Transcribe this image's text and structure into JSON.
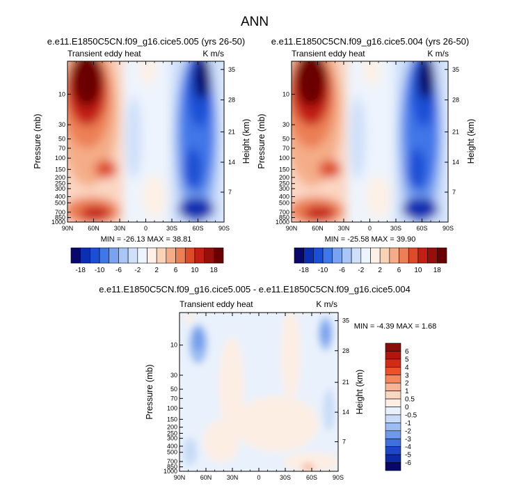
{
  "figure": {
    "title": "ANN"
  },
  "chart_data": [
    {
      "type": "heatmap",
      "title": "e.e11.E1850C5CN.f09_g16.cice5.005 (yrs 26-50)",
      "left_label": "Transient eddy heat",
      "right_label": "K m/s",
      "xlabel": "",
      "ylabel": "Pressure (mb)",
      "y2label": "Height (km)",
      "x_ticks": [
        "90N",
        "60N",
        "30N",
        "0",
        "30S",
        "60S",
        "90S"
      ],
      "y_ticks": [
        "10",
        "30",
        "50",
        "70",
        "100",
        "150",
        "200",
        "250",
        "300",
        "400",
        "500",
        "700",
        "850",
        "1000"
      ],
      "y2_ticks": [
        "35",
        "28",
        "21",
        "14",
        "7"
      ],
      "min_max": "MIN = -26.13  MAX = 38.81"
    },
    {
      "type": "heatmap",
      "title": "e.e11.E1850C5CN.f09_g16.cice5.004 (yrs 26-50)",
      "left_label": "Transient eddy heat",
      "right_label": "K m/s",
      "xlabel": "",
      "ylabel": "Pressure (mb)",
      "y2label": "Height (km)",
      "x_ticks": [
        "90N",
        "60N",
        "30N",
        "0",
        "30S",
        "60S",
        "90S"
      ],
      "y_ticks": [
        "10",
        "30",
        "50",
        "70",
        "100",
        "150",
        "200",
        "250",
        "300",
        "400",
        "500",
        "700",
        "850",
        "1000"
      ],
      "y2_ticks": [
        "35",
        "28",
        "21",
        "14",
        "7"
      ],
      "min_max": "MIN = -25.58  MAX = 39.90"
    },
    {
      "type": "heatmap",
      "title": "e.e11.E1850C5CN.f09_g16.cice5.005 - e.e11.E1850C5CN.f09_g16.cice5.004",
      "left_label": "Transient eddy heat",
      "right_label": "K m/s",
      "xlabel": "",
      "ylabel": "Pressure (mb)",
      "y2label": "Height (km)",
      "x_ticks": [
        "90N",
        "60N",
        "30N",
        "0",
        "30S",
        "60S",
        "90S"
      ],
      "y_ticks": [
        "10",
        "30",
        "50",
        "70",
        "100",
        "150",
        "200",
        "250",
        "300",
        "400",
        "500",
        "700",
        "850",
        "1000"
      ],
      "y2_ticks": [
        "35",
        "28",
        "21",
        "14",
        "7"
      ],
      "min_max": "MIN = -4.39  MAX =  1.68"
    }
  ],
  "colorbar_main": {
    "labels": [
      "-18",
      "-10",
      "-6",
      "-2",
      "2",
      "6",
      "10",
      "18"
    ],
    "colors": [
      "#08086b",
      "#0b2fb0",
      "#1a4fd6",
      "#3f76e8",
      "#79a3f0",
      "#a8c6f6",
      "#cfe0fa",
      "#eef4fd",
      "#fdf0e6",
      "#f9d3b8",
      "#f4ad88",
      "#ec7f55",
      "#de4b2a",
      "#c21f12",
      "#960f0a",
      "#6b0000"
    ]
  },
  "colorbar_diff": {
    "labels": [
      "6",
      "5",
      "4",
      "3",
      "2",
      "1",
      "0.5",
      "0",
      "-0.5",
      "-1",
      "-2",
      "-3",
      "-4",
      "-5",
      "-6"
    ],
    "colors": [
      "#8a0d0a",
      "#b1160e",
      "#d42b14",
      "#ec5128",
      "#f5875e",
      "#f8b497",
      "#fbd6c2",
      "#fdeee4",
      "#e9f1fc",
      "#c8dbf7",
      "#9dbcf2",
      "#6f9aea",
      "#3f70de",
      "#1b47cc",
      "#0b2aa3",
      "#08086b"
    ]
  }
}
